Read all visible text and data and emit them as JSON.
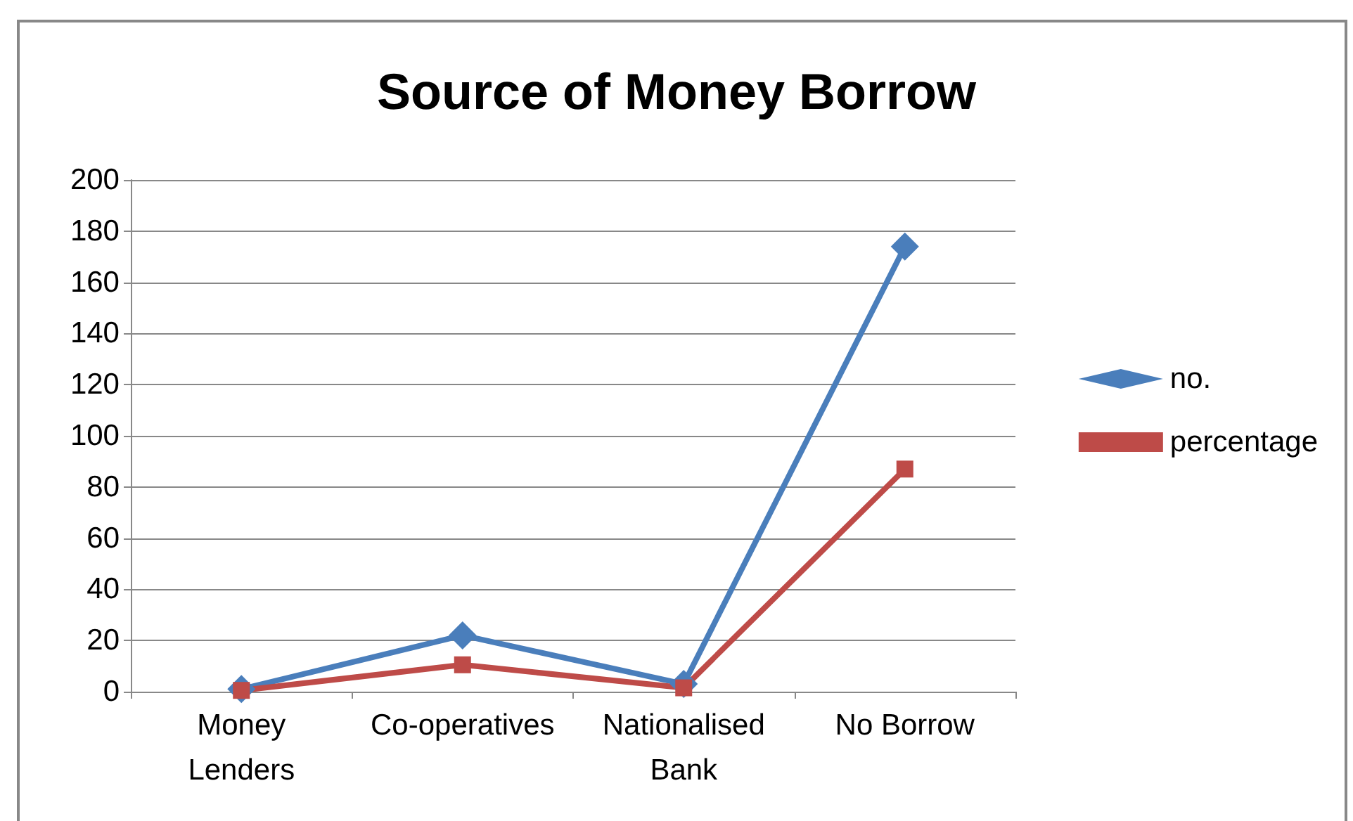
{
  "chart_data": {
    "type": "line",
    "title": "Source of Money Borrow",
    "categories": [
      "Money\nLenders",
      "Co-operatives",
      "Nationalised\nBank",
      "No Borrow"
    ],
    "series": [
      {
        "name": "no.",
        "color": "#4a7ebb",
        "marker": "diamond",
        "values": [
          1,
          22,
          3,
          174
        ]
      },
      {
        "name": "percentage",
        "color": "#be4b48",
        "marker": "square",
        "values": [
          0.5,
          10.5,
          1.5,
          87
        ]
      }
    ],
    "ylim": [
      0,
      200
    ],
    "yticks": [
      0,
      20,
      40,
      60,
      80,
      100,
      120,
      140,
      160,
      180,
      200
    ],
    "grid": "y",
    "legend": "right"
  }
}
